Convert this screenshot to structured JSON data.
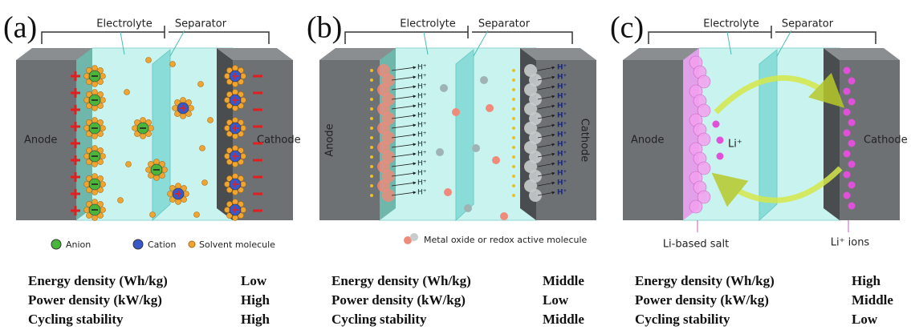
{
  "panels": [
    {
      "label": "(a)",
      "electrolyte": "Electrolyte",
      "separator": "Separator",
      "anode": "Anode",
      "cathode": "Cathode",
      "legend": [
        "Anion",
        "Cation",
        "Solvent molecule"
      ],
      "properties": [
        {
          "name": "Energy density (Wh/kg)",
          "level": "Low"
        },
        {
          "name": "Power density (kW/kg)",
          "level": "High"
        },
        {
          "name": "Cycling stability",
          "level": "High"
        }
      ]
    },
    {
      "label": "(b)",
      "electrolyte": "Electrolyte",
      "separator": "Separator",
      "anode": "Anode",
      "cathode": "Cathode",
      "ion": "H⁺",
      "legend": [
        "Metal oxide or redox active molecule"
      ],
      "properties": [
        {
          "name": "Energy density (Wh/kg)",
          "level": "Middle"
        },
        {
          "name": "Power density (kW/kg)",
          "level": "Low"
        },
        {
          "name": "Cycling stability",
          "level": "Middle"
        }
      ]
    },
    {
      "label": "(c)",
      "electrolyte": "Electrolyte",
      "separator": "Separator",
      "anode": "Anode",
      "cathode": "Cathode",
      "ion": "Li⁺",
      "salt": "Li-based salt",
      "ions": "Li⁺ ions",
      "properties": [
        {
          "name": "Energy density (Wh/kg)",
          "level": "High"
        },
        {
          "name": "Power density (kW/kg)",
          "level": "Middle"
        },
        {
          "name": "Cycling stability",
          "level": "Low"
        }
      ]
    }
  ]
}
